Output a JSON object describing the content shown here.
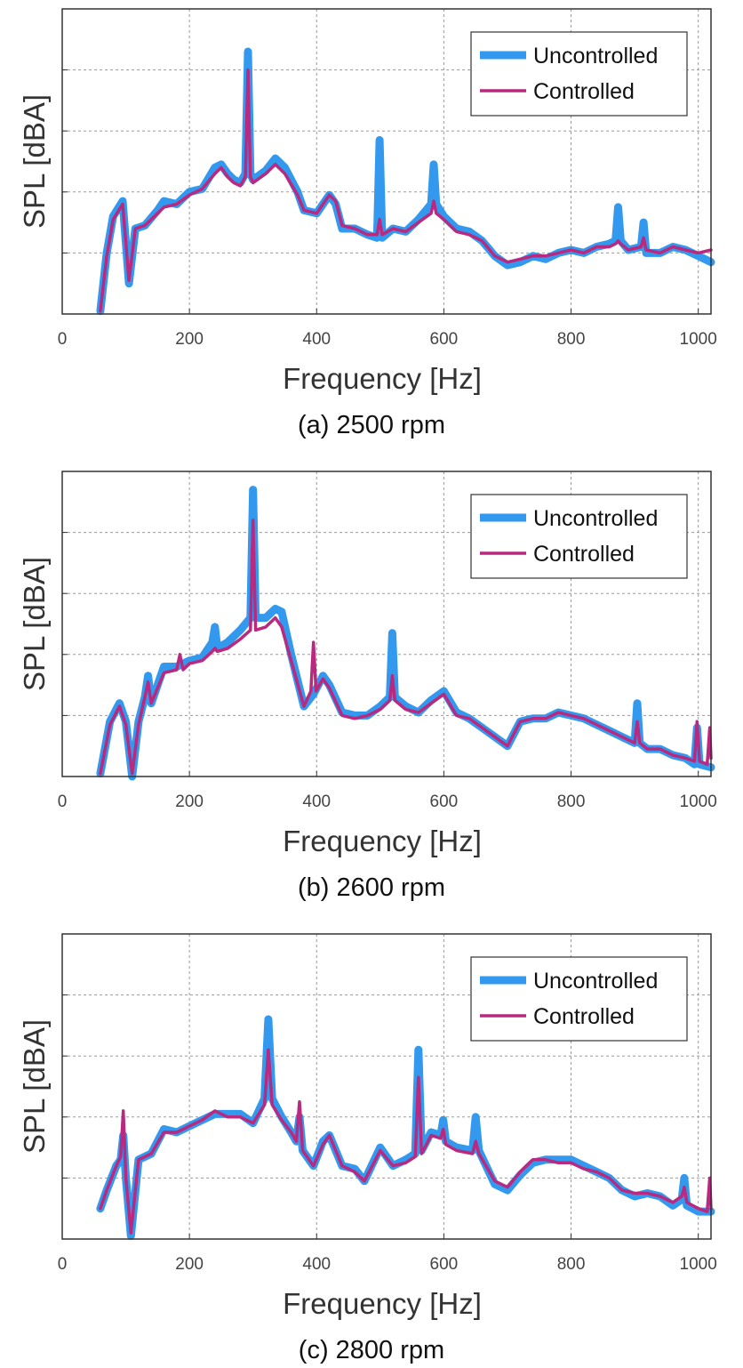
{
  "chart_data": [
    {
      "type": "line",
      "caption": "(a) 2500 rpm",
      "xlabel": "Frequency [Hz]",
      "ylabel": "SPL [dBA]",
      "xticks": [
        "0",
        "200",
        "400",
        "600",
        "800",
        "1000"
      ],
      "xlim": [
        0,
        1020
      ],
      "ylim": [
        0,
        5
      ],
      "y_tick_labels_shown": false,
      "grid": true,
      "legend": "top-right",
      "series": [
        {
          "name": "Uncontrolled",
          "color": "#3399ee",
          "x": [
            60,
            70,
            80,
            95,
            105,
            115,
            130,
            150,
            160,
            180,
            200,
            220,
            240,
            250,
            260,
            270,
            280,
            288,
            292,
            296,
            300,
            320,
            335,
            350,
            370,
            380,
            400,
            420,
            430,
            440,
            460,
            480,
            495,
            499,
            503,
            520,
            540,
            560,
            580,
            584,
            588,
            600,
            620,
            640,
            660,
            680,
            700,
            720,
            740,
            760,
            780,
            800,
            820,
            840,
            860,
            870,
            874,
            878,
            890,
            910,
            914,
            918,
            940,
            960,
            980,
            1000,
            1020
          ],
          "y": [
            0.05,
            1.0,
            1.6,
            1.85,
            0.5,
            1.4,
            1.45,
            1.7,
            1.85,
            1.8,
            2.0,
            2.05,
            2.4,
            2.45,
            2.3,
            2.2,
            2.15,
            2.3,
            4.3,
            2.3,
            2.2,
            2.35,
            2.55,
            2.4,
            2.0,
            1.7,
            1.65,
            1.95,
            1.8,
            1.4,
            1.4,
            1.3,
            1.25,
            2.85,
            1.25,
            1.4,
            1.35,
            1.55,
            1.8,
            2.45,
            1.8,
            1.6,
            1.4,
            1.35,
            1.2,
            0.95,
            0.8,
            0.85,
            0.95,
            0.9,
            1.0,
            1.05,
            1.0,
            1.1,
            1.15,
            1.2,
            1.75,
            1.2,
            1.05,
            1.1,
            1.5,
            1.0,
            1.0,
            1.1,
            1.05,
            0.95,
            0.85
          ]
        },
        {
          "name": "Controlled",
          "color": "#b8297f",
          "x": [
            60,
            70,
            80,
            95,
            105,
            115,
            130,
            150,
            160,
            180,
            200,
            220,
            240,
            250,
            260,
            270,
            280,
            288,
            292,
            296,
            300,
            320,
            335,
            350,
            370,
            380,
            400,
            420,
            430,
            440,
            460,
            480,
            495,
            499,
            503,
            520,
            540,
            560,
            580,
            584,
            588,
            600,
            620,
            640,
            660,
            680,
            700,
            720,
            740,
            760,
            780,
            800,
            820,
            840,
            860,
            870,
            874,
            878,
            890,
            910,
            914,
            918,
            940,
            960,
            980,
            1000,
            1020
          ],
          "y": [
            0.05,
            0.95,
            1.55,
            1.8,
            0.55,
            1.4,
            1.45,
            1.65,
            1.75,
            1.8,
            1.95,
            2.05,
            2.3,
            2.4,
            2.25,
            2.15,
            2.1,
            2.25,
            4.0,
            2.25,
            2.15,
            2.3,
            2.45,
            2.3,
            1.95,
            1.7,
            1.65,
            1.95,
            1.85,
            1.45,
            1.4,
            1.3,
            1.3,
            1.55,
            1.3,
            1.4,
            1.35,
            1.5,
            1.65,
            1.85,
            1.65,
            1.55,
            1.35,
            1.3,
            1.2,
            0.95,
            0.85,
            0.9,
            0.95,
            0.95,
            1.0,
            1.05,
            1.0,
            1.1,
            1.1,
            1.15,
            1.2,
            1.15,
            1.05,
            1.1,
            1.25,
            1.05,
            1.0,
            1.1,
            1.05,
            1.0,
            1.05
          ]
        }
      ]
    },
    {
      "type": "line",
      "caption": "(b) 2600 rpm",
      "xlabel": "Frequency [Hz]",
      "ylabel": "SPL [dBA]",
      "xticks": [
        "0",
        "200",
        "400",
        "600",
        "800",
        "1000"
      ],
      "xlim": [
        0,
        1020
      ],
      "ylim": [
        0,
        5
      ],
      "y_tick_labels_shown": false,
      "grid": true,
      "legend": "top-right",
      "series": [
        {
          "name": "Uncontrolled",
          "color": "#3399ee",
          "x": [
            60,
            75,
            90,
            100,
            110,
            120,
            130,
            135,
            140,
            160,
            180,
            200,
            220,
            236,
            240,
            244,
            260,
            280,
            296,
            300,
            304,
            320,
            335,
            345,
            360,
            380,
            395,
            410,
            420,
            440,
            460,
            480,
            500,
            515,
            519,
            523,
            540,
            560,
            580,
            600,
            620,
            640,
            660,
            680,
            700,
            720,
            740,
            760,
            780,
            800,
            820,
            840,
            860,
            880,
            900,
            904,
            908,
            920,
            940,
            960,
            980,
            994,
            998,
            1002,
            1020
          ],
          "y": [
            0.05,
            0.9,
            1.2,
            0.9,
            0.0,
            0.9,
            1.3,
            1.65,
            1.2,
            1.8,
            1.8,
            1.9,
            1.95,
            2.2,
            2.45,
            2.1,
            2.2,
            2.4,
            2.6,
            4.7,
            2.6,
            2.6,
            2.75,
            2.7,
            2.0,
            1.15,
            1.35,
            1.65,
            1.5,
            1.05,
            1.0,
            1.0,
            1.15,
            1.3,
            2.35,
            1.3,
            1.15,
            1.05,
            1.25,
            1.4,
            1.05,
            0.95,
            0.8,
            0.65,
            0.5,
            0.9,
            0.95,
            0.95,
            1.05,
            1.0,
            0.95,
            0.85,
            0.75,
            0.65,
            0.55,
            1.2,
            0.55,
            0.45,
            0.45,
            0.35,
            0.3,
            0.2,
            0.8,
            0.2,
            0.15
          ]
        },
        {
          "name": "Controlled",
          "color": "#b8297f",
          "x": [
            60,
            75,
            90,
            100,
            110,
            120,
            130,
            135,
            140,
            160,
            180,
            185,
            190,
            200,
            220,
            236,
            240,
            244,
            260,
            280,
            296,
            300,
            304,
            320,
            335,
            345,
            360,
            380,
            391,
            395,
            399,
            410,
            420,
            440,
            460,
            480,
            500,
            515,
            519,
            523,
            540,
            560,
            580,
            600,
            620,
            640,
            660,
            680,
            700,
            720,
            740,
            760,
            780,
            800,
            820,
            840,
            860,
            880,
            900,
            904,
            908,
            920,
            940,
            960,
            980,
            994,
            998,
            1002,
            1014,
            1018,
            1020
          ],
          "y": [
            0.05,
            0.85,
            1.15,
            0.85,
            0.05,
            0.85,
            1.3,
            1.55,
            1.2,
            1.7,
            1.75,
            2.0,
            1.75,
            1.85,
            1.9,
            2.05,
            2.1,
            2.05,
            2.1,
            2.25,
            2.4,
            4.2,
            2.4,
            2.45,
            2.6,
            2.45,
            1.9,
            1.15,
            1.4,
            2.2,
            1.4,
            1.6,
            1.45,
            1.0,
            0.95,
            1.0,
            1.1,
            1.25,
            1.65,
            1.25,
            1.1,
            1.05,
            1.2,
            1.35,
            1.0,
            0.95,
            0.8,
            0.65,
            0.5,
            0.9,
            0.95,
            0.95,
            1.05,
            1.0,
            0.95,
            0.85,
            0.75,
            0.65,
            0.55,
            0.9,
            0.55,
            0.45,
            0.45,
            0.35,
            0.3,
            0.25,
            0.9,
            0.25,
            0.2,
            0.8,
            0.3
          ]
        }
      ]
    },
    {
      "type": "line",
      "caption": "(c) 2800 rpm",
      "xlabel": "Frequency [Hz]",
      "ylabel": "SPL [dBA]",
      "xticks": [
        "0",
        "200",
        "400",
        "600",
        "800",
        "1000"
      ],
      "xlim": [
        0,
        1020
      ],
      "ylim": [
        0,
        5
      ],
      "y_tick_labels_shown": false,
      "grid": true,
      "legend": "top-right",
      "series": [
        {
          "name": "Uncontrolled",
          "color": "#3399ee",
          "x": [
            60,
            70,
            85,
            92,
            96,
            100,
            108,
            120,
            140,
            160,
            180,
            200,
            220,
            240,
            260,
            280,
            300,
            318,
            324,
            330,
            345,
            360,
            368,
            373,
            378,
            395,
            410,
            420,
            440,
            460,
            475,
            500,
            520,
            540,
            555,
            560,
            565,
            580,
            595,
            599,
            603,
            620,
            645,
            650,
            655,
            680,
            700,
            720,
            740,
            760,
            780,
            800,
            820,
            840,
            860,
            880,
            900,
            920,
            940,
            960,
            974,
            978,
            982,
            1000,
            1020
          ],
          "y": [
            0.5,
            0.8,
            1.2,
            1.3,
            1.7,
            1.0,
            0.05,
            1.3,
            1.4,
            1.8,
            1.75,
            1.85,
            1.95,
            2.05,
            2.05,
            2.05,
            1.9,
            2.3,
            3.6,
            2.3,
            2.0,
            1.75,
            1.6,
            2.0,
            1.45,
            1.2,
            1.6,
            1.7,
            1.2,
            1.15,
            0.95,
            1.5,
            1.2,
            1.3,
            1.4,
            3.1,
            1.45,
            1.75,
            1.7,
            1.95,
            1.6,
            1.5,
            1.45,
            2.0,
            1.45,
            0.9,
            0.8,
            1.05,
            1.25,
            1.3,
            1.3,
            1.3,
            1.2,
            1.1,
            1.0,
            0.8,
            0.7,
            0.75,
            0.7,
            0.55,
            0.65,
            1.0,
            0.55,
            0.45,
            0.45
          ]
        },
        {
          "name": "Controlled",
          "color": "#b8297f",
          "x": [
            60,
            70,
            85,
            92,
            96,
            100,
            108,
            120,
            140,
            160,
            180,
            200,
            220,
            240,
            260,
            280,
            300,
            318,
            324,
            330,
            345,
            360,
            368,
            373,
            378,
            395,
            410,
            420,
            440,
            460,
            475,
            500,
            520,
            540,
            555,
            560,
            565,
            580,
            595,
            599,
            603,
            620,
            645,
            650,
            655,
            680,
            700,
            720,
            740,
            760,
            780,
            800,
            820,
            840,
            860,
            880,
            900,
            920,
            940,
            960,
            974,
            978,
            982,
            1000,
            1014,
            1018,
            1020
          ],
          "y": [
            0.5,
            0.8,
            1.2,
            1.35,
            2.1,
            1.0,
            0.1,
            1.3,
            1.4,
            1.75,
            1.75,
            1.85,
            1.95,
            2.1,
            2.0,
            2.0,
            1.9,
            2.2,
            3.1,
            2.2,
            1.95,
            1.75,
            1.6,
            2.25,
            1.45,
            1.2,
            1.55,
            1.7,
            1.2,
            1.1,
            0.95,
            1.45,
            1.2,
            1.25,
            1.35,
            2.65,
            1.4,
            1.7,
            1.65,
            1.8,
            1.55,
            1.45,
            1.4,
            1.6,
            1.4,
            0.95,
            0.85,
            1.1,
            1.3,
            1.3,
            1.25,
            1.25,
            1.15,
            1.1,
            1.0,
            0.8,
            0.75,
            0.75,
            0.7,
            0.6,
            0.7,
            0.85,
            0.6,
            0.5,
            0.45,
            1.0,
            0.5
          ]
        }
      ]
    }
  ]
}
